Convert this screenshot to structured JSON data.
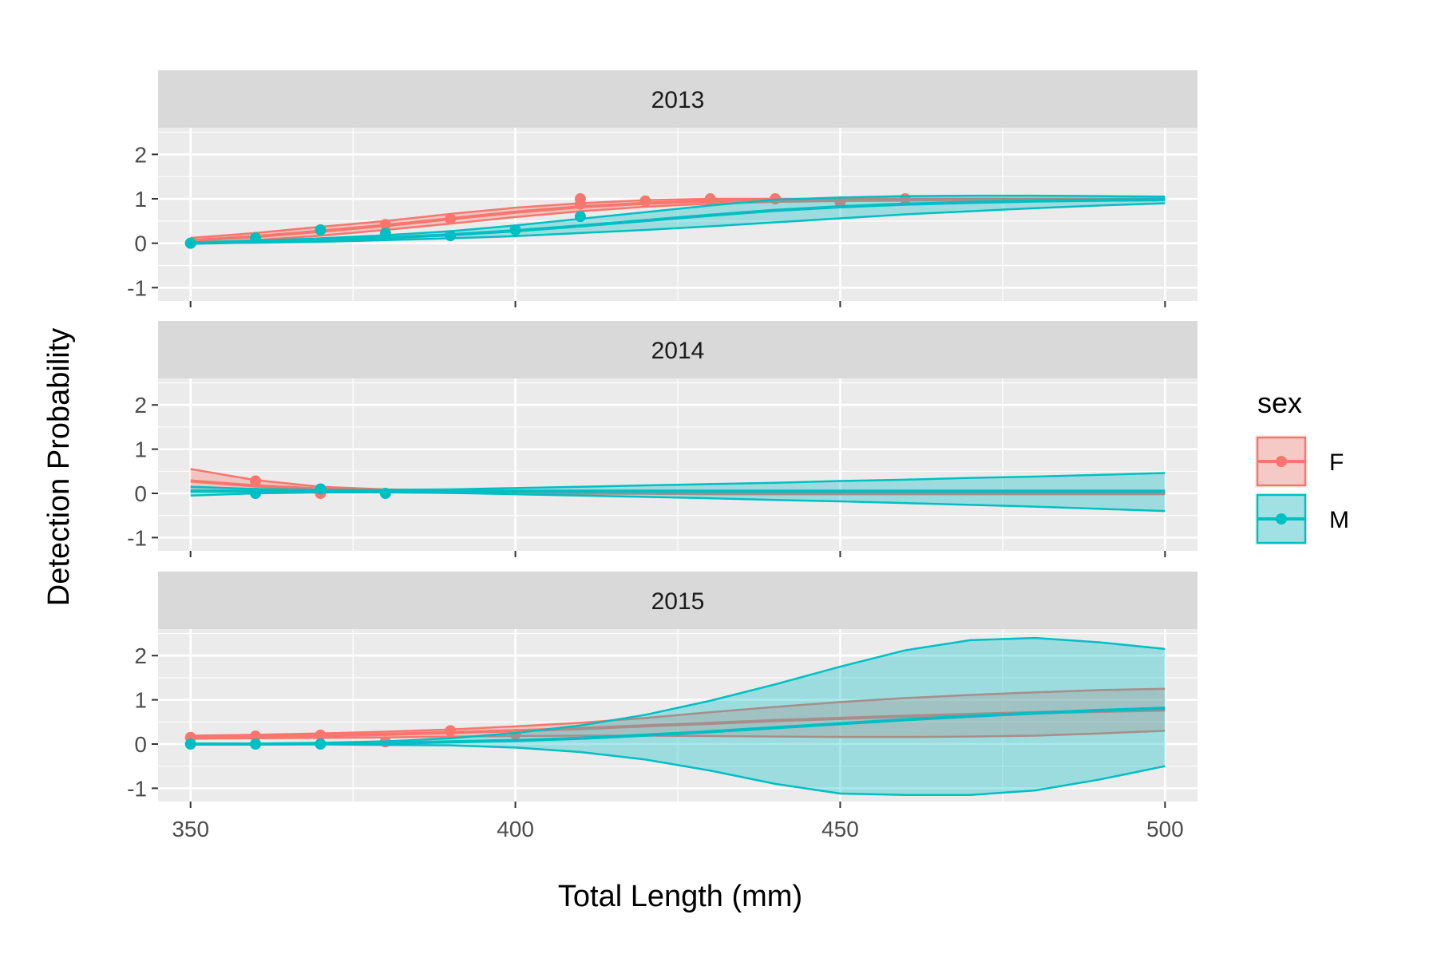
{
  "chart_data": {
    "type": "line",
    "xlabel": "Total Length (mm)",
    "ylabel": "Detection Probability",
    "xlim": [
      345,
      505
    ],
    "ylim": [
      -1.3,
      2.6
    ],
    "x_ticks": [
      350,
      400,
      450,
      500
    ],
    "y_ticks": [
      -1,
      0,
      1,
      2
    ],
    "grid": true,
    "legend": {
      "title": "sex",
      "position": "right",
      "entries": [
        {
          "label": "F",
          "color": "#F8766D"
        },
        {
          "label": "M",
          "color": "#00BFC4"
        }
      ]
    },
    "fit_x": [
      350,
      360,
      370,
      380,
      390,
      400,
      410,
      420,
      430,
      440,
      450,
      460,
      470,
      480,
      490,
      500
    ],
    "panels": [
      {
        "title": "2013",
        "series": [
          {
            "name": "F",
            "color": "#F8766D",
            "points": [
              [
                350,
                0.0
              ],
              [
                360,
                0.12
              ],
              [
                370,
                0.3
              ],
              [
                380,
                0.42
              ],
              [
                390,
                0.55
              ],
              [
                410,
                1.0
              ],
              [
                410,
                0.88
              ],
              [
                420,
                0.95
              ],
              [
                430,
                1.0
              ],
              [
                440,
                1.0
              ],
              [
                450,
                0.93
              ],
              [
                460,
                1.0
              ]
            ],
            "fit": [
              0.06,
              0.15,
              0.27,
              0.4,
              0.55,
              0.7,
              0.82,
              0.9,
              0.95,
              0.97,
              0.98,
              0.99,
              0.99,
              0.99,
              0.99,
              0.99
            ],
            "lower": [
              0.0,
              0.07,
              0.17,
              0.3,
              0.44,
              0.59,
              0.72,
              0.82,
              0.89,
              0.93,
              0.95,
              0.96,
              0.97,
              0.97,
              0.97,
              0.97
            ],
            "upper": [
              0.12,
              0.23,
              0.37,
              0.5,
              0.66,
              0.8,
              0.9,
              0.97,
              1.0,
              1.0,
              1.0,
              1.0,
              1.0,
              1.0,
              1.0,
              1.0
            ]
          },
          {
            "name": "M",
            "color": "#00BFC4",
            "points": [
              [
                350,
                0.0
              ],
              [
                360,
                0.12
              ],
              [
                370,
                0.3
              ],
              [
                380,
                0.22
              ],
              [
                390,
                0.17
              ],
              [
                400,
                0.3
              ],
              [
                410,
                0.6
              ]
            ],
            "fit": [
              0.0,
              0.03,
              0.07,
              0.12,
              0.19,
              0.28,
              0.39,
              0.51,
              0.63,
              0.74,
              0.82,
              0.88,
              0.92,
              0.95,
              0.97,
              0.98
            ],
            "lower": [
              0.0,
              0.01,
              0.03,
              0.07,
              0.11,
              0.16,
              0.23,
              0.3,
              0.38,
              0.47,
              0.56,
              0.65,
              0.72,
              0.79,
              0.85,
              0.9
            ],
            "upper": [
              0.02,
              0.06,
              0.11,
              0.18,
              0.27,
              0.4,
              0.55,
              0.7,
              0.85,
              0.98,
              1.03,
              1.06,
              1.07,
              1.07,
              1.06,
              1.05
            ]
          }
        ]
      },
      {
        "title": "2014",
        "series": [
          {
            "name": "F",
            "color": "#F8766D",
            "points": [
              [
                360,
                0.28
              ],
              [
                370,
                0.0
              ]
            ],
            "fit": [
              0.28,
              0.17,
              0.1,
              0.06,
              0.04,
              0.03,
              0.02,
              0.01,
              0.01,
              0.0,
              0.0,
              0.0,
              0.0,
              0.0,
              0.0,
              0.0
            ],
            "lower": [
              0.05,
              0.06,
              0.05,
              0.03,
              0.01,
              0.0,
              -0.01,
              -0.01,
              -0.02,
              -0.02,
              -0.02,
              -0.02,
              -0.02,
              -0.02,
              -0.02,
              -0.02
            ],
            "upper": [
              0.55,
              0.3,
              0.15,
              0.09,
              0.07,
              0.06,
              0.05,
              0.04,
              0.03,
              0.03,
              0.02,
              0.02,
              0.02,
              0.02,
              0.02,
              0.02
            ]
          },
          {
            "name": "M",
            "color": "#00BFC4",
            "points": [
              [
                360,
                0.0
              ],
              [
                370,
                0.1
              ],
              [
                380,
                0.0
              ]
            ],
            "fit": [
              0.05,
              0.05,
              0.05,
              0.05,
              0.05,
              0.05,
              0.05,
              0.05,
              0.05,
              0.05,
              0.05,
              0.05,
              0.05,
              0.05,
              0.05,
              0.05
            ],
            "lower": [
              -0.05,
              0.0,
              0.02,
              0.02,
              0.01,
              -0.02,
              -0.05,
              -0.08,
              -0.11,
              -0.15,
              -0.18,
              -0.22,
              -0.26,
              -0.3,
              -0.35,
              -0.4
            ],
            "upper": [
              0.15,
              0.1,
              0.08,
              0.08,
              0.09,
              0.12,
              0.15,
              0.18,
              0.21,
              0.24,
              0.28,
              0.31,
              0.35,
              0.38,
              0.42,
              0.46
            ]
          }
        ]
      },
      {
        "title": "2015",
        "series": [
          {
            "name": "F",
            "color": "#F8766D",
            "points": [
              [
                350,
                0.15
              ],
              [
                360,
                0.18
              ],
              [
                370,
                0.2
              ],
              [
                380,
                0.05
              ],
              [
                390,
                0.3
              ],
              [
                400,
                0.22
              ]
            ],
            "fit": [
              0.15,
              0.17,
              0.19,
              0.22,
              0.26,
              0.3,
              0.35,
              0.41,
              0.47,
              0.53,
              0.58,
              0.63,
              0.67,
              0.71,
              0.74,
              0.77
            ],
            "lower": [
              0.12,
              0.13,
              0.14,
              0.15,
              0.17,
              0.18,
              0.19,
              0.19,
              0.18,
              0.17,
              0.16,
              0.16,
              0.17,
              0.19,
              0.24,
              0.3
            ],
            "upper": [
              0.19,
              0.21,
              0.24,
              0.28,
              0.33,
              0.4,
              0.48,
              0.59,
              0.72,
              0.84,
              0.95,
              1.04,
              1.11,
              1.17,
              1.22,
              1.25
            ]
          },
          {
            "name": "M",
            "color": "#00BFC4",
            "points": [
              [
                350,
                0.0
              ],
              [
                360,
                0.0
              ],
              [
                370,
                0.0
              ]
            ],
            "fit": [
              0.0,
              0.0,
              0.01,
              0.02,
              0.05,
              0.08,
              0.13,
              0.2,
              0.28,
              0.37,
              0.46,
              0.55,
              0.63,
              0.7,
              0.76,
              0.81
            ],
            "lower": [
              -0.01,
              -0.01,
              -0.01,
              -0.02,
              -0.03,
              -0.08,
              -0.18,
              -0.35,
              -0.6,
              -0.9,
              -1.12,
              -1.15,
              -1.15,
              -1.05,
              -0.8,
              -0.5
            ],
            "upper": [
              0.01,
              0.01,
              0.03,
              0.06,
              0.13,
              0.25,
              0.42,
              0.66,
              0.98,
              1.35,
              1.75,
              2.12,
              2.35,
              2.4,
              2.3,
              2.15
            ]
          }
        ]
      }
    ]
  }
}
